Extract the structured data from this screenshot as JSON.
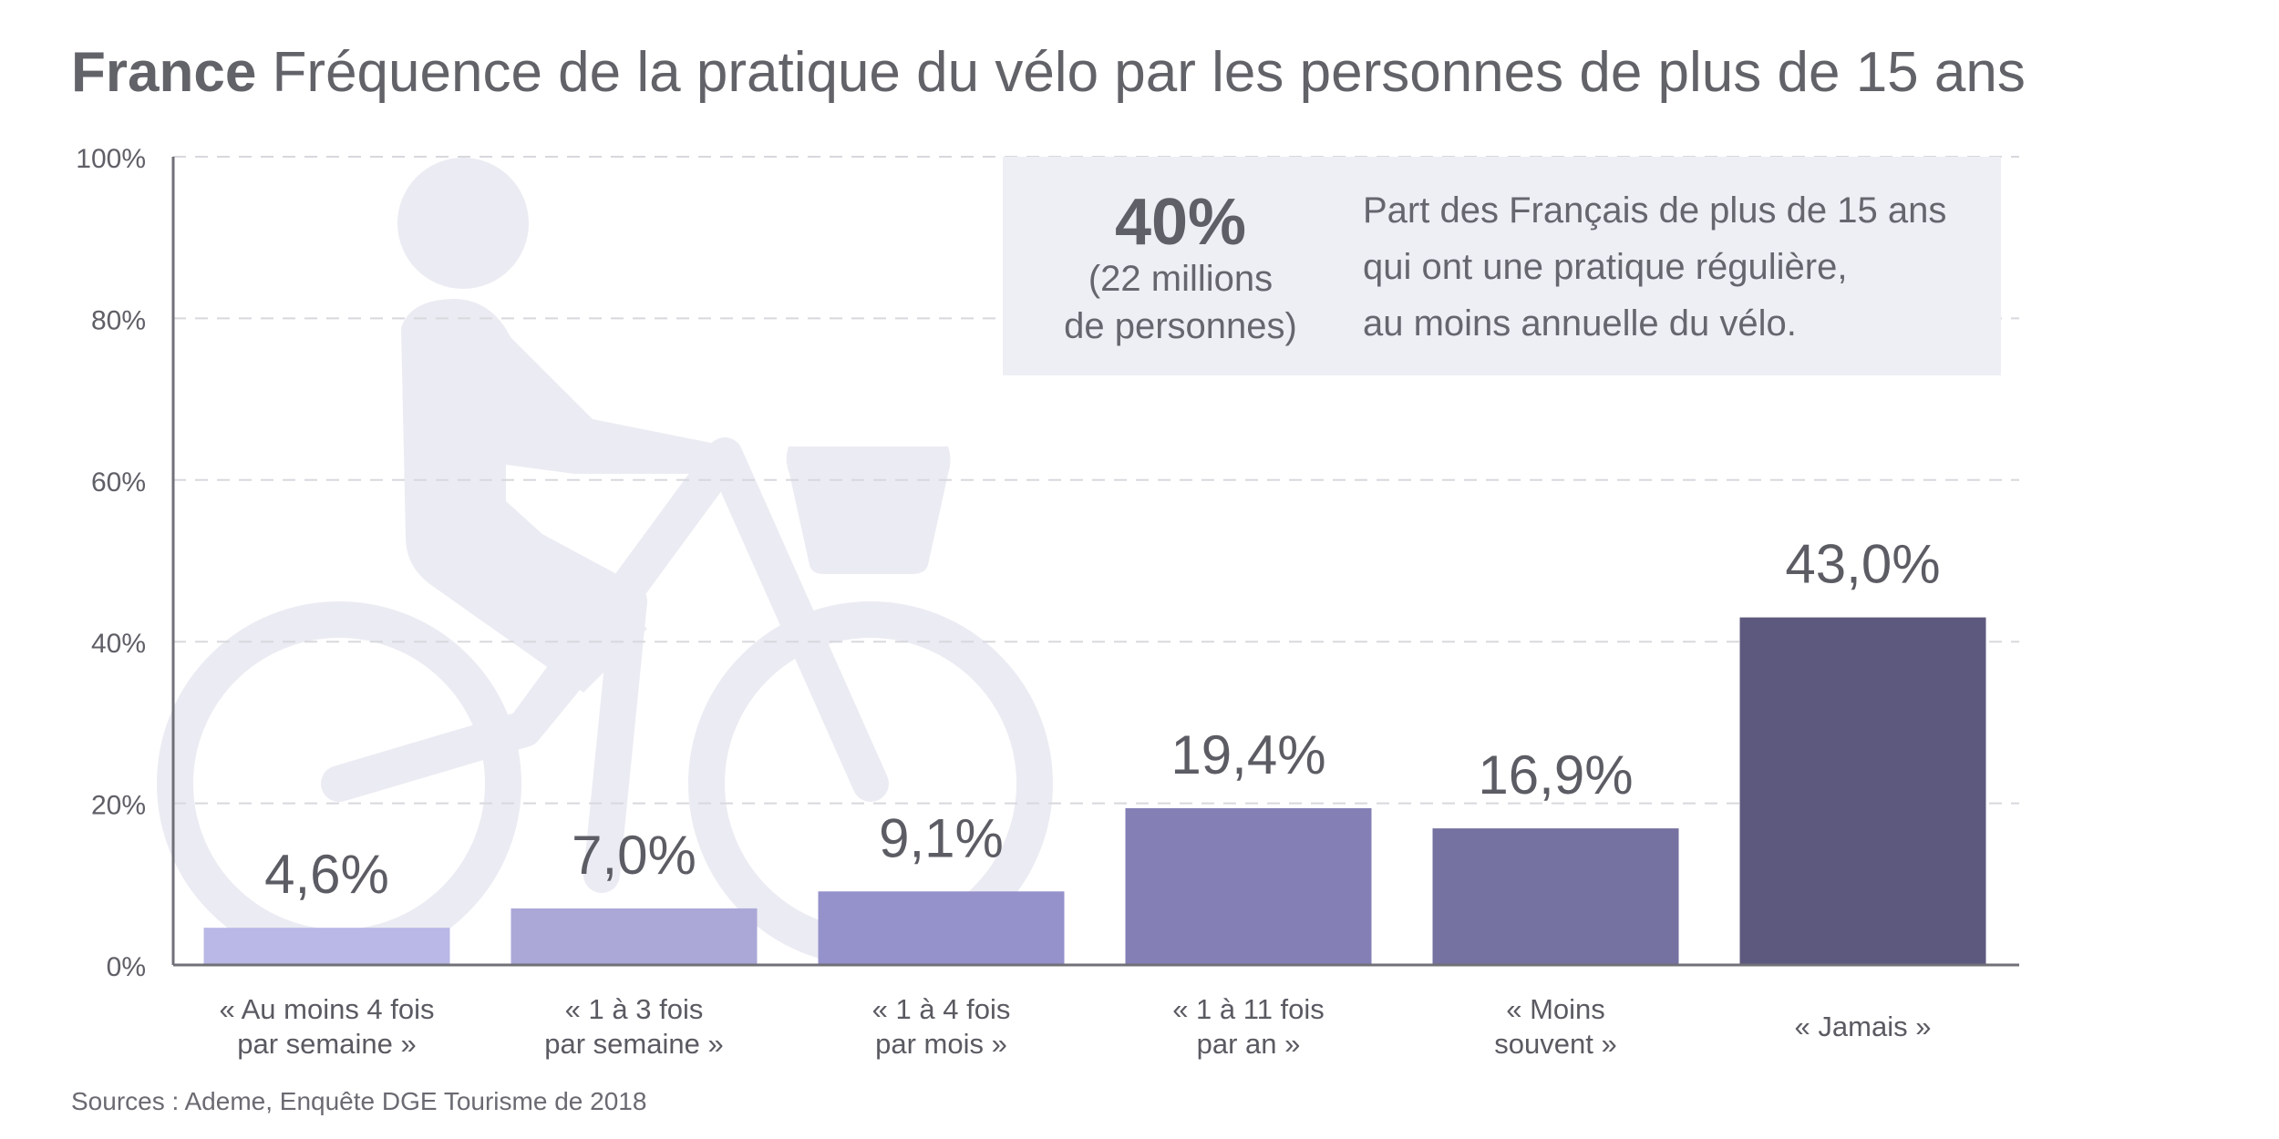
{
  "title": {
    "bold": "France",
    "rest": " Fréquence de la pratique du vélo par les personnes de plus de 15 ans"
  },
  "callout": {
    "value": "40%",
    "sub_line1": "(22 millions",
    "sub_line2": "de personnes)",
    "text_lines": [
      "Part des Français de plus de 15 ans",
      "qui ont une pratique régulière,",
      "au moins annuelle du vélo."
    ]
  },
  "source": "Sources : Ademe, Enquête DGE Tourisme de 2018",
  "colors": {
    "bars": [
      "#b9b8e6",
      "#aba8d8",
      "#9591cb",
      "#847fb5",
      "#7571a0",
      "#5d597e"
    ],
    "grid": "#d8d8de",
    "axis": "#707078",
    "silhouette": "#ebebf3",
    "callout_bg": "#eeeff5"
  },
  "chart_data": {
    "type": "bar",
    "title": "France Fréquence de la pratique du vélo par les personnes de plus de 15 ans",
    "categories": [
      [
        "« Au moins 4 fois",
        "par semaine »"
      ],
      [
        "« 1 à 3 fois",
        "par semaine »"
      ],
      [
        "« 1 à 4 fois",
        "par mois »"
      ],
      [
        "« 1 à 11 fois",
        "par an »"
      ],
      [
        "« Moins",
        "souvent »"
      ],
      [
        "« Jamais »"
      ]
    ],
    "values": [
      4.6,
      7.0,
      9.1,
      19.4,
      16.9,
      43.0
    ],
    "value_labels": [
      "4,6%",
      "7,0%",
      "9,1%",
      "19,4%",
      "16,9%",
      "43,0%"
    ],
    "yticks": [
      "0%",
      "20%",
      "40%",
      "60%",
      "80%",
      "100%"
    ],
    "ylim": [
      0,
      100
    ],
    "grid": true,
    "xlabel": "",
    "ylabel": ""
  }
}
